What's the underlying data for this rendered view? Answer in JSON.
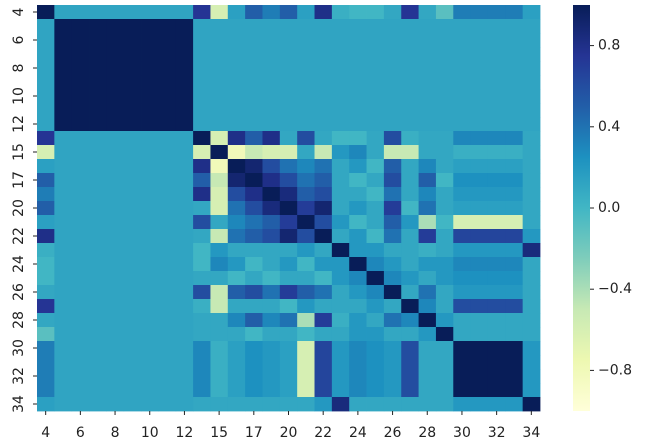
{
  "chart_data": {
    "type": "heatmap",
    "categories": [
      "4",
      null,
      "6",
      null,
      "8",
      null,
      "10",
      null,
      "12",
      null,
      "15",
      null,
      "17",
      null,
      "20",
      null,
      "22",
      null,
      "24",
      null,
      "26",
      null,
      "28",
      null,
      "30",
      null,
      "32",
      null,
      "34"
    ],
    "values": [
      [
        1,
        0.12,
        0.12,
        0.12,
        0.12,
        0.12,
        0.12,
        0.12,
        0.12,
        0.75,
        -0.6,
        0.15,
        0.5,
        0.35,
        0.5,
        0.15,
        0.8,
        0.05,
        0,
        0,
        0.1,
        0.75,
        0.1,
        -0.1,
        0.35,
        0.35,
        0.35,
        0.35,
        0.15
      ],
      [
        0.12,
        1,
        1,
        1,
        1,
        1,
        1,
        1,
        1,
        0.12,
        0.12,
        0.12,
        0.12,
        0.12,
        0.12,
        0.12,
        0.12,
        0.12,
        0.12,
        0.12,
        0.12,
        0.12,
        0.12,
        0.12,
        0.12,
        0.12,
        0.12,
        0.12,
        0.12
      ],
      [
        0.12,
        1,
        1,
        1,
        1,
        1,
        1,
        1,
        1,
        0.12,
        0.12,
        0.12,
        0.12,
        0.12,
        0.12,
        0.12,
        0.12,
        0.12,
        0.12,
        0.12,
        0.12,
        0.12,
        0.12,
        0.12,
        0.12,
        0.12,
        0.12,
        0.12,
        0.12
      ],
      [
        0.12,
        1,
        1,
        1,
        1,
        1,
        1,
        1,
        1,
        0.12,
        0.12,
        0.12,
        0.12,
        0.12,
        0.12,
        0.12,
        0.12,
        0.12,
        0.12,
        0.12,
        0.12,
        0.12,
        0.12,
        0.12,
        0.12,
        0.12,
        0.12,
        0.12,
        0.12
      ],
      [
        0.12,
        1,
        1,
        1,
        1,
        1,
        1,
        1,
        1,
        0.12,
        0.12,
        0.12,
        0.12,
        0.12,
        0.12,
        0.12,
        0.12,
        0.12,
        0.12,
        0.12,
        0.12,
        0.12,
        0.12,
        0.12,
        0.12,
        0.12,
        0.12,
        0.12,
        0.12
      ],
      [
        0.12,
        1,
        1,
        1,
        1,
        1,
        1,
        1,
        1,
        0.12,
        0.12,
        0.12,
        0.12,
        0.12,
        0.12,
        0.12,
        0.12,
        0.12,
        0.12,
        0.12,
        0.12,
        0.12,
        0.12,
        0.12,
        0.12,
        0.12,
        0.12,
        0.12,
        0.12
      ],
      [
        0.12,
        1,
        1,
        1,
        1,
        1,
        1,
        1,
        1,
        0.12,
        0.12,
        0.12,
        0.12,
        0.12,
        0.12,
        0.12,
        0.12,
        0.12,
        0.12,
        0.12,
        0.12,
        0.12,
        0.12,
        0.12,
        0.12,
        0.12,
        0.12,
        0.12,
        0.12
      ],
      [
        0.12,
        1,
        1,
        1,
        1,
        1,
        1,
        1,
        1,
        0.12,
        0.12,
        0.12,
        0.12,
        0.12,
        0.12,
        0.12,
        0.12,
        0.12,
        0.12,
        0.12,
        0.12,
        0.12,
        0.12,
        0.12,
        0.12,
        0.12,
        0.12,
        0.12,
        0.12
      ],
      [
        0.12,
        1,
        1,
        1,
        1,
        1,
        1,
        1,
        1,
        0.12,
        0.12,
        0.12,
        0.12,
        0.12,
        0.12,
        0.12,
        0.12,
        0.12,
        0.12,
        0.12,
        0.12,
        0.12,
        0.12,
        0.12,
        0.12,
        0.12,
        0.12,
        0.12,
        0.12
      ],
      [
        0.75,
        0.12,
        0.12,
        0.12,
        0.12,
        0.12,
        0.12,
        0.12,
        0.12,
        1,
        -0.6,
        0.8,
        0.5,
        0.8,
        0.1,
        0.6,
        0.1,
        0,
        0,
        0.1,
        0.6,
        0.05,
        0.1,
        0.1,
        0.3,
        0.3,
        0.3,
        0.3,
        0.1
      ],
      [
        -0.6,
        0.12,
        0.12,
        0.12,
        0.12,
        0.12,
        0.12,
        0.12,
        0.12,
        -0.6,
        1,
        -0.8,
        -0.5,
        -0.6,
        -0.6,
        0.1,
        -0.5,
        0.2,
        0.3,
        0.1,
        -0.5,
        -0.5,
        0.1,
        0.1,
        0.05,
        0.05,
        0.05,
        0.05,
        0.1
      ],
      [
        0.15,
        0.12,
        0.12,
        0.12,
        0.12,
        0.12,
        0.12,
        0.12,
        0.12,
        0.8,
        -0.8,
        1,
        0.9,
        0.6,
        0.4,
        0.3,
        0.4,
        0.1,
        0.2,
        0,
        0.5,
        0.1,
        0.3,
        0.1,
        0.15,
        0.15,
        0.15,
        0.15,
        0.1
      ],
      [
        0.5,
        0.12,
        0.12,
        0.12,
        0.12,
        0.12,
        0.12,
        0.12,
        0.12,
        0.5,
        -0.5,
        0.9,
        1,
        0.8,
        0.6,
        0.4,
        0.5,
        0.1,
        0,
        0.1,
        0.6,
        0.1,
        0.5,
        0,
        0.25,
        0.25,
        0.25,
        0.25,
        0.1
      ],
      [
        0.35,
        0.12,
        0.12,
        0.12,
        0.12,
        0.12,
        0.12,
        0.12,
        0.12,
        0.8,
        -0.6,
        0.6,
        0.8,
        1,
        0.85,
        0.5,
        0.6,
        0.1,
        0.1,
        0,
        0.4,
        0.1,
        0.3,
        0.1,
        0.2,
        0.2,
        0.2,
        0.2,
        0.1
      ],
      [
        0.5,
        0.12,
        0.12,
        0.12,
        0.12,
        0.12,
        0.12,
        0.12,
        0.12,
        0.1,
        -0.6,
        0.4,
        0.6,
        0.85,
        1,
        0.7,
        0.9,
        0.1,
        0.2,
        0.1,
        0.7,
        0,
        0.4,
        0.1,
        0.15,
        0.15,
        0.15,
        0.15,
        0.1
      ],
      [
        0.15,
        0.12,
        0.12,
        0.12,
        0.12,
        0.12,
        0.12,
        0.12,
        0.12,
        0.6,
        0.1,
        0.3,
        0.4,
        0.5,
        0.7,
        1,
        0.6,
        0.2,
        0,
        0.1,
        0.5,
        0.2,
        -0.4,
        0,
        -0.6,
        -0.6,
        -0.6,
        -0.6,
        0.1
      ],
      [
        0.8,
        0.12,
        0.12,
        0.12,
        0.12,
        0.12,
        0.12,
        0.12,
        0.12,
        0.1,
        -0.5,
        0.4,
        0.5,
        0.6,
        0.9,
        0.6,
        1,
        0.1,
        0.2,
        0,
        0.4,
        0.1,
        0.7,
        0.1,
        0.65,
        0.65,
        0.65,
        0.65,
        0.2
      ],
      [
        0.05,
        0.12,
        0.12,
        0.12,
        0.12,
        0.12,
        0.12,
        0.12,
        0.12,
        0,
        0.2,
        0.1,
        0.1,
        0.1,
        0.1,
        0.2,
        0.1,
        1,
        0.2,
        0.2,
        0.1,
        0.1,
        0.05,
        0.1,
        0.2,
        0.2,
        0.2,
        0.2,
        0.85
      ],
      [
        0,
        0.12,
        0.12,
        0.12,
        0.12,
        0.12,
        0.12,
        0.12,
        0.12,
        0,
        0.3,
        0.2,
        0,
        0.1,
        0.2,
        0,
        0.2,
        0.2,
        1,
        0.3,
        0.2,
        0.1,
        0.2,
        0.2,
        0.3,
        0.3,
        0.3,
        0.3,
        0.1
      ],
      [
        0,
        0.12,
        0.12,
        0.12,
        0.12,
        0.12,
        0.12,
        0.12,
        0.12,
        0.1,
        0.1,
        0,
        0.1,
        0,
        0.1,
        0.1,
        0,
        0.2,
        0.3,
        1,
        0.3,
        0.2,
        0.1,
        0.2,
        0.25,
        0.25,
        0.25,
        0.25,
        0.1
      ],
      [
        0.1,
        0.12,
        0.12,
        0.12,
        0.12,
        0.12,
        0.12,
        0.12,
        0.12,
        0.6,
        -0.5,
        0.5,
        0.6,
        0.4,
        0.7,
        0.5,
        0.4,
        0.1,
        0.2,
        0.3,
        1,
        0.1,
        0.4,
        0.1,
        0.2,
        0.2,
        0.2,
        0.2,
        0.1
      ],
      [
        0.75,
        0.12,
        0.12,
        0.12,
        0.12,
        0.12,
        0.12,
        0.12,
        0.12,
        0.05,
        -0.5,
        0.1,
        0.1,
        0.1,
        0,
        0.2,
        0.1,
        0.1,
        0.1,
        0.2,
        0.1,
        1,
        0.3,
        0.1,
        0.6,
        0.6,
        0.6,
        0.6,
        0.1
      ],
      [
        0.1,
        0.12,
        0.12,
        0.12,
        0.12,
        0.12,
        0.12,
        0.12,
        0.12,
        0.1,
        0.1,
        0.3,
        0.5,
        0.3,
        0.4,
        -0.4,
        0.7,
        0.05,
        0.2,
        0.1,
        0.4,
        0.3,
        1,
        0.2,
        0.1,
        0.1,
        0.1,
        0.1,
        0.1
      ],
      [
        -0.1,
        0.12,
        0.12,
        0.12,
        0.12,
        0.12,
        0.12,
        0.12,
        0.12,
        0.1,
        0.1,
        0.1,
        0,
        0.1,
        0.1,
        0,
        0.1,
        0.1,
        0.2,
        0.2,
        0.1,
        0.1,
        0.2,
        1,
        0.1,
        0.1,
        0.1,
        0.1,
        0.1
      ],
      [
        0.35,
        0.12,
        0.12,
        0.12,
        0.12,
        0.12,
        0.12,
        0.12,
        0.12,
        0.3,
        0.05,
        0.15,
        0.25,
        0.2,
        0.15,
        -0.6,
        0.65,
        0.2,
        0.3,
        0.25,
        0.2,
        0.6,
        0.1,
        0.1,
        1,
        1,
        1,
        1,
        0.2
      ],
      [
        0.35,
        0.12,
        0.12,
        0.12,
        0.12,
        0.12,
        0.12,
        0.12,
        0.12,
        0.3,
        0.05,
        0.15,
        0.25,
        0.2,
        0.15,
        -0.6,
        0.65,
        0.2,
        0.3,
        0.25,
        0.2,
        0.6,
        0.1,
        0.1,
        1,
        1,
        1,
        1,
        0.2
      ],
      [
        0.35,
        0.12,
        0.12,
        0.12,
        0.12,
        0.12,
        0.12,
        0.12,
        0.12,
        0.3,
        0.05,
        0.15,
        0.25,
        0.2,
        0.15,
        -0.6,
        0.65,
        0.2,
        0.3,
        0.25,
        0.2,
        0.6,
        0.1,
        0.1,
        1,
        1,
        1,
        1,
        0.2
      ],
      [
        0.35,
        0.12,
        0.12,
        0.12,
        0.12,
        0.12,
        0.12,
        0.12,
        0.12,
        0.3,
        0.05,
        0.15,
        0.25,
        0.2,
        0.15,
        -0.6,
        0.65,
        0.2,
        0.3,
        0.25,
        0.2,
        0.6,
        0.1,
        0.1,
        1,
        1,
        1,
        1,
        0.2
      ],
      [
        0.15,
        0.12,
        0.12,
        0.12,
        0.12,
        0.12,
        0.12,
        0.12,
        0.12,
        0.1,
        0.1,
        0.1,
        0.1,
        0.1,
        0.1,
        0.1,
        0.2,
        0.85,
        0.1,
        0.1,
        0.1,
        0.1,
        0.1,
        0.1,
        0.2,
        0.2,
        0.2,
        0.2,
        1
      ]
    ],
    "colorscale": [
      "#ffffd9",
      "#edf8b1",
      "#c7e9b4",
      "#7fcdbb",
      "#41b6c4",
      "#1d91c0",
      "#225ea8",
      "#253494",
      "#081d58"
    ],
    "clim": [
      -1,
      1
    ],
    "cticks": [
      0.8,
      0.4,
      {
        "value": 0,
        "label": "0.0"
      },
      {
        "value": -0.4,
        "label": "−0.4"
      },
      {
        "value": -0.8,
        "label": "−0.8"
      }
    ]
  }
}
